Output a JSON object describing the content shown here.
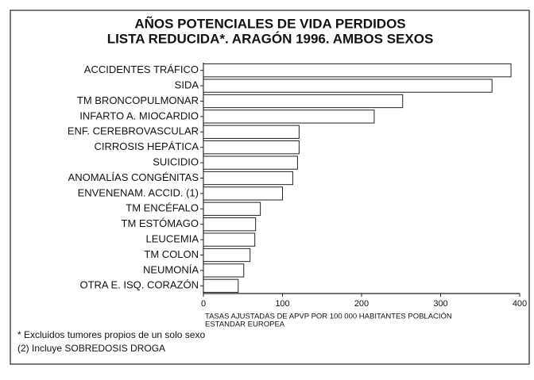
{
  "chart_data": {
    "type": "barh",
    "title": "AÑOS POTENCIALES DE VIDA PERDIDOS",
    "subtitle": "LISTA REDUCIDA*. ARAGÓN 1996. AMBOS SEXOS",
    "categories": [
      "ACCIDENTES TRÁFICO",
      "SIDA",
      "TM BRONCOPULMONAR",
      "INFARTO A. MIOCARDIO",
      "ENF. CEREBROVASCULAR",
      "CIRROSIS HEPÁTICA",
      "SUICIDIO",
      "ANOMALÍAS CONGÉNITAS",
      "ENVENENAM. ACCID. (1)",
      "TM ENCÉFALO",
      "TM ESTÓMAGO",
      "LEUCEMIA",
      "TM COLON",
      "NEUMONÍA",
      "OTRA E. ISQ. CORAZÓN"
    ],
    "values": [
      389,
      365,
      252,
      216,
      121,
      121,
      119,
      113,
      100,
      72,
      66,
      65,
      59,
      51,
      44
    ],
    "color": "#ffffff",
    "xlim": [
      0,
      400
    ],
    "xticks": [
      0,
      100,
      200,
      300,
      400
    ],
    "grid": false,
    "xlabel": [
      "TASAS AJUSTADAS DE APVP POR 100 000 HABITANTES POBLACIÓN",
      "ESTANDAR EUROPEA"
    ],
    "footnotes": [
      "*  Excluidos tumores propios de un solo sexo",
      "(2) Incluye SOBREDOSIS DROGA"
    ]
  }
}
